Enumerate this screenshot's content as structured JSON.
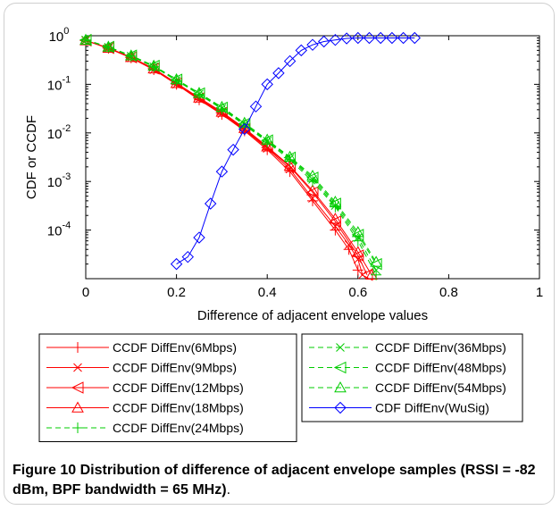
{
  "chart_data": {
    "type": "line",
    "xlabel": "Difference of adjacent envelope values",
    "ylabel": "CDF or CCDF",
    "xlim": [
      0,
      1
    ],
    "ylim": [
      1e-05,
      1
    ],
    "yscale": "log",
    "x_ticks": [
      0,
      0.2,
      0.4,
      0.6,
      0.8,
      1
    ],
    "x_tick_labels": [
      "0",
      "0.2",
      "0.4",
      "0.6",
      "0.8",
      "1"
    ],
    "y_ticks": [
      1,
      0.1,
      0.01,
      0.001,
      0.0001
    ],
    "y_tick_labels": [
      {
        "base": "10",
        "exp": "0"
      },
      {
        "base": "10",
        "exp": "-1"
      },
      {
        "base": "10",
        "exp": "-2"
      },
      {
        "base": "10",
        "exp": "-3"
      },
      {
        "base": "10",
        "exp": "-4"
      }
    ],
    "grid": false,
    "series": [
      {
        "name": "CCDF DiffEnv(6Mbps)",
        "color": "#ff0000",
        "marker": "plus",
        "dash": "solid",
        "x": [
          0,
          0.05,
          0.1,
          0.15,
          0.2,
          0.25,
          0.3,
          0.35,
          0.4,
          0.45,
          0.5,
          0.55,
          0.58,
          0.6
        ],
        "y": [
          0.8,
          0.55,
          0.35,
          0.2,
          0.1,
          0.048,
          0.024,
          0.011,
          0.0045,
          0.0016,
          0.0004,
          0.0001,
          4e-05,
          1.5e-05
        ]
      },
      {
        "name": "CCDF DiffEnv(9Mbps)",
        "color": "#ff0000",
        "marker": "x",
        "dash": "solid",
        "x": [
          0,
          0.05,
          0.1,
          0.15,
          0.2,
          0.25,
          0.3,
          0.35,
          0.4,
          0.45,
          0.5,
          0.55,
          0.58,
          0.6,
          0.61
        ],
        "y": [
          0.8,
          0.55,
          0.35,
          0.2,
          0.1,
          0.05,
          0.025,
          0.0115,
          0.0048,
          0.0018,
          0.00045,
          0.00012,
          5e-05,
          2.5e-05,
          1.2e-05
        ]
      },
      {
        "name": "CCDF DiffEnv(12Mbps)",
        "color": "#ff0000",
        "marker": "triangle-left",
        "dash": "solid",
        "x": [
          0,
          0.05,
          0.1,
          0.15,
          0.2,
          0.25,
          0.3,
          0.35,
          0.4,
          0.45,
          0.5,
          0.55,
          0.6,
          0.62
        ],
        "y": [
          0.8,
          0.56,
          0.36,
          0.21,
          0.105,
          0.052,
          0.026,
          0.012,
          0.005,
          0.002,
          0.0006,
          0.00015,
          3e-05,
          1.2e-05
        ]
      },
      {
        "name": "CCDF DiffEnv(18Mbps)",
        "color": "#ff0000",
        "marker": "triangle-up",
        "dash": "solid",
        "x": [
          0,
          0.05,
          0.1,
          0.15,
          0.2,
          0.25,
          0.3,
          0.35,
          0.4,
          0.45,
          0.5,
          0.55,
          0.6,
          0.63
        ],
        "y": [
          0.8,
          0.56,
          0.36,
          0.21,
          0.105,
          0.053,
          0.027,
          0.0125,
          0.0052,
          0.0021,
          0.00065,
          0.00017,
          3.5e-05,
          1.2e-05
        ]
      },
      {
        "name": "CCDF DiffEnv(24Mbps)",
        "color": "#00cc00",
        "marker": "plus",
        "dash": "dashed",
        "x": [
          0,
          0.05,
          0.1,
          0.15,
          0.2,
          0.25,
          0.3,
          0.35,
          0.4,
          0.45,
          0.5,
          0.55,
          0.6,
          0.64
        ],
        "y": [
          0.82,
          0.58,
          0.38,
          0.23,
          0.12,
          0.062,
          0.031,
          0.0145,
          0.0065,
          0.0028,
          0.001,
          0.0003,
          6e-05,
          1.2e-05
        ]
      },
      {
        "name": "CCDF DiffEnv(36Mbps)",
        "color": "#00cc00",
        "marker": "x",
        "dash": "dashed",
        "x": [
          0,
          0.05,
          0.1,
          0.15,
          0.2,
          0.25,
          0.3,
          0.35,
          0.4,
          0.45,
          0.5,
          0.55,
          0.6,
          0.64
        ],
        "y": [
          0.82,
          0.58,
          0.38,
          0.23,
          0.12,
          0.063,
          0.032,
          0.015,
          0.0068,
          0.003,
          0.0011,
          0.00032,
          7e-05,
          1.5e-05
        ]
      },
      {
        "name": "CCDF DiffEnv(48Mbps)",
        "color": "#00cc00",
        "marker": "triangle-left",
        "dash": "dashed",
        "x": [
          0,
          0.05,
          0.1,
          0.15,
          0.2,
          0.25,
          0.3,
          0.35,
          0.4,
          0.45,
          0.5,
          0.55,
          0.6,
          0.64
        ],
        "y": [
          0.82,
          0.59,
          0.39,
          0.24,
          0.125,
          0.065,
          0.033,
          0.0155,
          0.007,
          0.0031,
          0.0012,
          0.00035,
          8e-05,
          2e-05
        ]
      },
      {
        "name": "CCDF DiffEnv(54Mbps)",
        "color": "#00cc00",
        "marker": "triangle-up",
        "dash": "dashed",
        "x": [
          0,
          0.05,
          0.1,
          0.15,
          0.2,
          0.25,
          0.3,
          0.35,
          0.4,
          0.45,
          0.5,
          0.55,
          0.6,
          0.64
        ],
        "y": [
          0.82,
          0.59,
          0.39,
          0.24,
          0.126,
          0.066,
          0.034,
          0.016,
          0.0072,
          0.0032,
          0.0013,
          0.00038,
          9e-05,
          2.2e-05
        ]
      },
      {
        "name": "CDF DiffEnv(WuSig)",
        "color": "#0000ff",
        "marker": "diamond",
        "dash": "solid",
        "x": [
          0.2,
          0.225,
          0.25,
          0.275,
          0.3,
          0.325,
          0.35,
          0.375,
          0.4,
          0.425,
          0.45,
          0.475,
          0.5,
          0.525,
          0.55,
          0.575,
          0.6,
          0.625,
          0.65,
          0.675,
          0.7,
          0.725
        ],
        "y": [
          2e-05,
          2.8e-05,
          7e-05,
          0.00035,
          0.0016,
          0.0045,
          0.012,
          0.035,
          0.1,
          0.17,
          0.3,
          0.5,
          0.65,
          0.76,
          0.82,
          0.88,
          0.9,
          0.9,
          0.9,
          0.9,
          0.9,
          0.9
        ]
      }
    ]
  },
  "caption": {
    "label": "Figure 10",
    "text": "Distribution of difference of adjacent envelope samples (RSSI = -82 dBm, BPF bandwidth = 65 MHz)",
    "end": "."
  }
}
